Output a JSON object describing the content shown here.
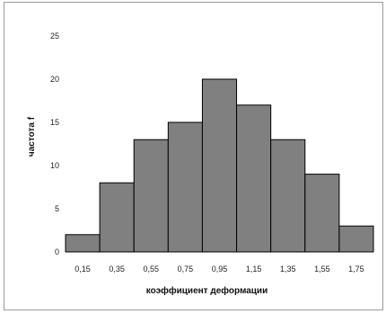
{
  "chart_data": {
    "type": "bar",
    "title": "",
    "xlabel": "коэффициент деформации",
    "ylabel": "частота f",
    "categories": [
      "0,15",
      "0,35",
      "0,55",
      "0,75",
      "0,95",
      "1,15",
      "1,35",
      "1,55",
      "1,75"
    ],
    "values": [
      2,
      8,
      13,
      15,
      20,
      17,
      13,
      9,
      3
    ],
    "ylim": [
      0,
      25
    ],
    "yticks": [
      "0",
      "5",
      "10",
      "15",
      "20",
      "25"
    ],
    "grid": false,
    "legend": "none",
    "bar_color": "#808080",
    "bar_edge_color": "#000000",
    "histogram": true
  }
}
